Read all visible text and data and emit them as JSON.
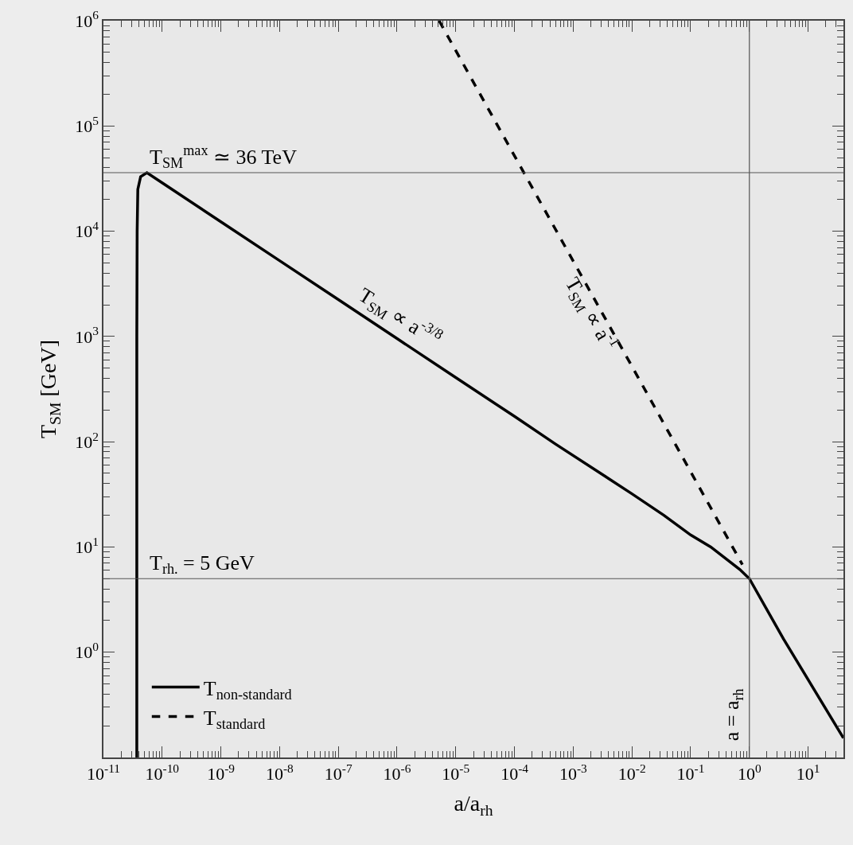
{
  "chart_data": {
    "type": "line",
    "xlabel": "a/a$_{rh}$",
    "ylabel": "T$_{SM}$ [GeV]",
    "log": "xy",
    "grid": false,
    "legend": "bottom left",
    "marker": "none",
    "xlim": [
      1e-11,
      40
    ],
    "ylim": [
      0.1,
      1000000
    ],
    "xticks": [
      {
        "value": 1e-11,
        "label": "10$^{-11}$"
      },
      {
        "value": 1e-10,
        "label": "10$^{-10}$"
      },
      {
        "value": 1e-09,
        "label": "10$^{-9}$"
      },
      {
        "value": 1e-08,
        "label": "10$^{-8}$"
      },
      {
        "value": 1e-07,
        "label": "10$^{-7}$"
      },
      {
        "value": 1e-06,
        "label": "10$^{-6}$"
      },
      {
        "value": 1e-05,
        "label": "10$^{-5}$"
      },
      {
        "value": 0.0001,
        "label": "10$^{-4}$"
      },
      {
        "value": 0.001,
        "label": "10$^{-3}$"
      },
      {
        "value": 0.01,
        "label": "10$^{-2}$"
      },
      {
        "value": 0.1,
        "label": "10$^{-1}$"
      },
      {
        "value": 1,
        "label": "10$^{0}$"
      },
      {
        "value": 10,
        "label": "10$^{1}$"
      }
    ],
    "yticks": [
      {
        "value": 1,
        "label": "10$^{0}$"
      },
      {
        "value": 10,
        "label": "10$^{1}$"
      },
      {
        "value": 100,
        "label": "10$^{2}$"
      },
      {
        "value": 1000,
        "label": "10$^{3}$"
      },
      {
        "value": 10000,
        "label": "10$^{4}$"
      },
      {
        "value": 100000,
        "label": "10$^{5}$"
      },
      {
        "value": 1000000,
        "label": "10$^{6}$"
      }
    ],
    "series": [
      {
        "name": "T$_{non-standard}$",
        "color": "#000000",
        "line_style": "solid",
        "x": [
          3.7e-11,
          3.7e-11,
          3.75e-11,
          3.85e-11,
          4.3e-11,
          5.5e-11,
          1e-10,
          1e-09,
          1e-08,
          1e-07,
          1e-06,
          1e-05,
          0.0001,
          0.0005,
          0.01,
          0.035,
          0.1,
          0.22,
          0.69,
          1,
          3.8,
          40
        ],
        "values": [
          0.1,
          1000,
          10000,
          25000,
          33000,
          36000,
          28800,
          12300,
          5250,
          2240,
          955,
          407,
          174,
          95,
          32,
          20,
          13,
          10,
          6.1,
          5.0,
          1.34,
          0.153
        ]
      },
      {
        "name": "T$_{standard}$",
        "color": "#000000",
        "line_style": "dashed",
        "x": [
          5.2e-06,
          0.0001,
          0.01,
          0.76
        ],
        "values": [
          1000000,
          52000,
          520,
          6.8
        ]
      }
    ],
    "ref_lines": [
      {
        "axis": "y",
        "value": 36000,
        "label": "T$_{SM}$$^{max}$ ≃ 36 TeV",
        "color": "#555555"
      },
      {
        "axis": "y",
        "value": 5,
        "label": "T$_{rh.}$ = 5 GeV",
        "color": "#555555"
      },
      {
        "axis": "x",
        "value": 1,
        "label": "a = a$_{rh}$",
        "color": "#555555"
      }
    ],
    "annotations": [
      "T$_{SM}$ ∝ a$^{-3/8}$",
      "T$_{SM}$ ∝ a$^{-1}$"
    ]
  }
}
